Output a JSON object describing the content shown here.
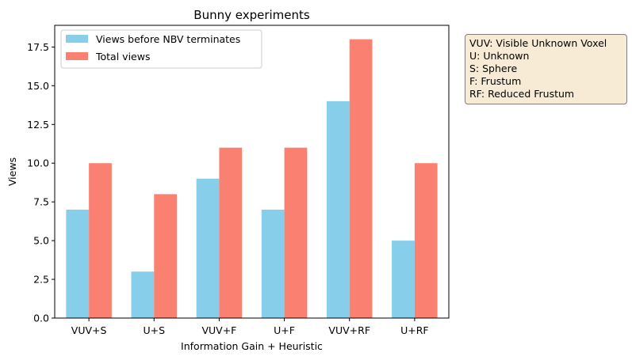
{
  "chart_data": {
    "type": "bar",
    "title": "Bunny experiments",
    "xlabel": "Information Gain + Heuristic",
    "ylabel": "Views",
    "categories": [
      "VUV+S",
      "U+S",
      "VUV+F",
      "U+F",
      "VUV+RF",
      "U+RF"
    ],
    "series": [
      {
        "name": "Views before NBV terminates",
        "values": [
          7,
          3,
          9,
          7,
          14,
          5
        ],
        "color": "#87ceeb"
      },
      {
        "name": "Total views",
        "values": [
          10,
          8,
          11,
          11,
          18,
          10
        ],
        "color": "#fa8072"
      }
    ],
    "ylim": [
      0,
      18.9
    ],
    "yticks": [
      "0.0",
      "2.5",
      "5.0",
      "7.5",
      "10.0",
      "12.5",
      "15.0",
      "17.5"
    ],
    "ytick_values": [
      0,
      2.5,
      5,
      7.5,
      10,
      12.5,
      15,
      17.5
    ],
    "grid": false,
    "legend_position": "top-left"
  },
  "annotation": {
    "lines": [
      "VUV: Visible Unknown Voxel",
      "U: Unknown",
      "S: Sphere",
      "F: Frustum",
      "RF: Reduced Frustum"
    ]
  }
}
